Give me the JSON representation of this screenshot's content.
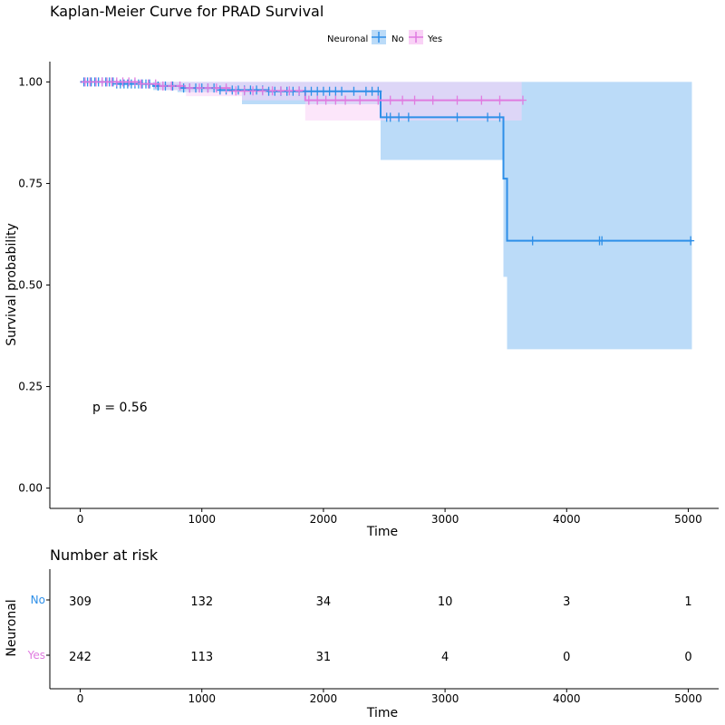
{
  "colors": {
    "no": "#2E8FE8",
    "yes": "#E07BE0",
    "no_band": "#BBDBF8",
    "yes_band": "#F9D2F6",
    "band_overlap": "#D4C4F4",
    "axis": "#000000",
    "risk_no_label": "#2E8FE8",
    "risk_yes_label": "#E07BE0"
  },
  "chart_data": {
    "type": "line",
    "title": "Kaplan-Meier Curve for PRAD Survival",
    "xlabel": "Time",
    "ylabel": "Survival probability",
    "xlim": [
      -250,
      5250
    ],
    "ylim": [
      -0.05,
      1.05
    ],
    "x_ticks": [
      0,
      1000,
      2000,
      3000,
      4000,
      5000
    ],
    "y_ticks": [
      0.0,
      0.25,
      0.5,
      0.75,
      1.0
    ],
    "y_tick_labels": [
      "0.00",
      "0.25",
      "0.50",
      "0.75",
      "1.00"
    ],
    "grid": false,
    "legend": {
      "title": "Neuronal",
      "placement": "top",
      "entries": [
        "No",
        "Yes"
      ]
    },
    "annotation": "p = 0.56",
    "series": [
      {
        "name": "No",
        "steps": [
          [
            0,
            1.0
          ],
          [
            300,
            0.995
          ],
          [
            600,
            0.99
          ],
          [
            820,
            0.985
          ],
          [
            1150,
            0.98
          ],
          [
            1550,
            0.977
          ],
          [
            2470,
            0.913
          ],
          [
            3480,
            0.762
          ],
          [
            3510,
            0.609
          ],
          [
            5030,
            0.609
          ]
        ],
        "band": [
          [
            0,
            1.0,
            1.0
          ],
          [
            600,
            1.0,
            0.98
          ],
          [
            800,
            1.0,
            0.975
          ],
          [
            1330,
            1.0,
            0.945
          ],
          [
            2470,
            1.0,
            0.808
          ],
          [
            3480,
            1.0,
            0.52
          ],
          [
            3510,
            1.0,
            0.342
          ],
          [
            5030,
            1.0,
            0.342
          ]
        ],
        "censor_times": [
          30,
          60,
          90,
          120,
          150,
          180,
          210,
          240,
          270,
          300,
          330,
          360,
          390,
          420,
          450,
          480,
          510,
          540,
          570,
          640,
          700,
          760,
          850,
          900,
          950,
          1000,
          1050,
          1100,
          1150,
          1200,
          1250,
          1300,
          1350,
          1400,
          1450,
          1500,
          1550,
          1600,
          1650,
          1700,
          1750,
          1800,
          1850,
          1900,
          1950,
          2000,
          2050,
          2100,
          2150,
          2250,
          2350,
          2400,
          2450,
          2520,
          2550,
          2620,
          2700,
          3100,
          3350,
          3450,
          3720,
          4270,
          4290,
          5020
        ]
      },
      {
        "name": "Yes",
        "steps": [
          [
            0,
            1.0
          ],
          [
            500,
            0.995
          ],
          [
            650,
            0.99
          ],
          [
            860,
            0.985
          ],
          [
            1230,
            0.978
          ],
          [
            1850,
            0.955
          ],
          [
            3630,
            0.955
          ]
        ],
        "band": [
          [
            0,
            1.0,
            1.0
          ],
          [
            650,
            1.0,
            0.98
          ],
          [
            870,
            1.0,
            0.965
          ],
          [
            1330,
            1.0,
            0.955
          ],
          [
            1850,
            1.0,
            0.905
          ],
          [
            3630,
            1.0,
            0.905
          ]
        ],
        "censor_times": [
          40,
          80,
          130,
          180,
          220,
          260,
          300,
          350,
          400,
          450,
          500,
          560,
          620,
          680,
          750,
          820,
          900,
          980,
          1050,
          1120,
          1200,
          1280,
          1350,
          1420,
          1500,
          1580,
          1650,
          1720,
          1800,
          1880,
          1950,
          2020,
          2100,
          2180,
          2300,
          2450,
          2550,
          2650,
          2750,
          2900,
          3100,
          3300,
          3450,
          3640
        ]
      }
    ],
    "risk_table": {
      "title": "Number at risk",
      "ylabel": "Neuronal",
      "xlabel": "Time",
      "times": [
        0,
        1000,
        2000,
        3000,
        4000,
        5000
      ],
      "rows": [
        {
          "name": "No",
          "counts": [
            309,
            132,
            34,
            10,
            3,
            1
          ]
        },
        {
          "name": "Yes",
          "counts": [
            242,
            113,
            31,
            4,
            0,
            0
          ]
        }
      ]
    }
  }
}
